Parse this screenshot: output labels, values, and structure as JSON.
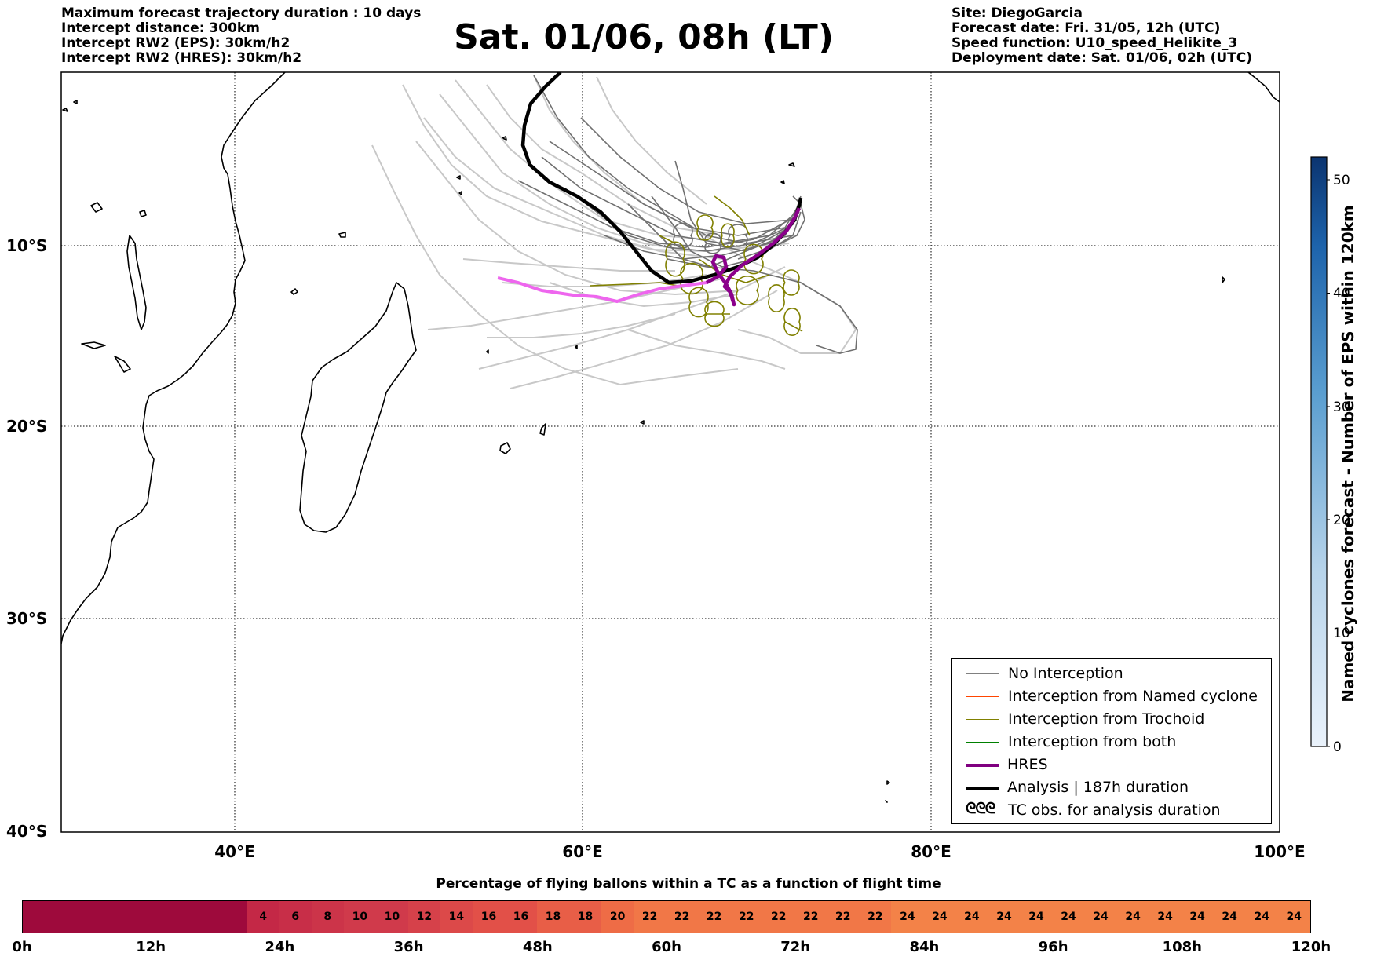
{
  "header": {
    "left_lines": [
      "Maximum forecast trajectory duration : 10 days",
      "Intercept distance: 300km",
      "Intercept RW2 (EPS):  30km/h2",
      "Intercept RW2 (HRES): 30km/h2"
    ],
    "right_lines": [
      "Site: DiegoGarcia",
      "Forecast date: Fri. 31/05, 12h (UTC)",
      "Speed function: U10_speed_Helikite_3",
      "Deployment date: Sat. 01/06, 02h (UTC)"
    ],
    "title": "Sat. 01/06, 08h (LT)"
  },
  "map": {
    "lat_labels": [
      "10°S",
      "20°S",
      "30°S",
      "40°S"
    ],
    "lon_labels": [
      "40°E",
      "60°E",
      "80°E",
      "100°E"
    ],
    "gridlines": true
  },
  "legend": {
    "items": [
      {
        "label": "No Interception",
        "color": "#808080",
        "style": "thin"
      },
      {
        "label": "Interception from Named cyclone",
        "color": "#ff4500",
        "style": "thin"
      },
      {
        "label": "Interception from Trochoid",
        "color": "#808000",
        "style": "thin"
      },
      {
        "label": "Interception from both",
        "color": "#008000",
        "style": "thin"
      },
      {
        "label": "HRES",
        "color": "#800080",
        "style": "thick"
      },
      {
        "label": "Analysis | 187h duration",
        "color": "#000000",
        "style": "thick"
      }
    ],
    "tc_symbol": "ᘓᘓᘓ",
    "tc_label": "TC obs. for analysis duration"
  },
  "colorbar": {
    "title": "Named cyclones forecast - Number of EPS within 120km",
    "ticks": [
      "0",
      "10",
      "20",
      "30",
      "40",
      "50"
    ],
    "range": [
      0,
      52
    ]
  },
  "percentage": {
    "title": "Percentage of flying ballons within a TC as a function of flight time",
    "values": [
      "4",
      "6",
      "8",
      "10",
      "10",
      "12",
      "14",
      "16",
      "16",
      "18",
      "18",
      "20",
      "22",
      "22",
      "22",
      "22",
      "22",
      "22",
      "22",
      "22",
      "24",
      "24",
      "24",
      "24",
      "24",
      "24",
      "24",
      "24",
      "24",
      "24",
      "24",
      "24",
      "24"
    ],
    "hour_labels": [
      "0h",
      "12h",
      "24h",
      "36h",
      "48h",
      "60h",
      "72h",
      "84h",
      "96h",
      "108h",
      "120h"
    ]
  }
}
